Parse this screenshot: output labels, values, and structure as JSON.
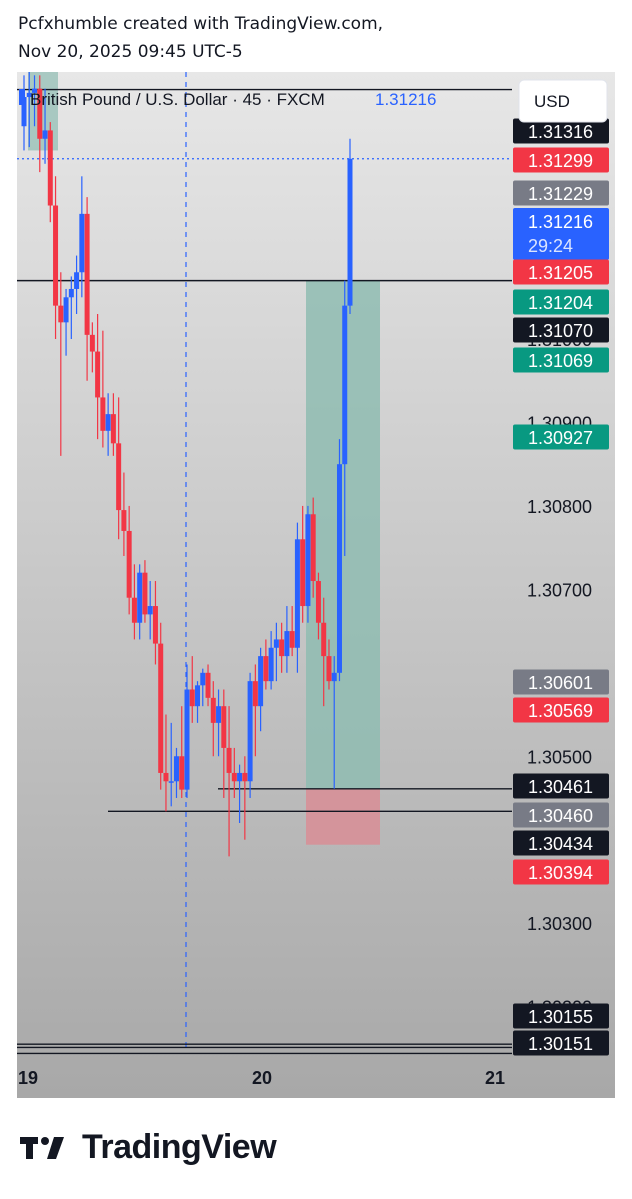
{
  "header": {
    "line1": "Pcfxhumble created with TradingView.com,",
    "line2": "Nov 20, 2025 09:45 UTC-5"
  },
  "legend": {
    "symbol": "British Pound / U.S. Dollar · 45 · FXCM",
    "last_price": "1.31216"
  },
  "currency_button": "USD",
  "footer": {
    "brand": "TradingView",
    "logo_icon": "tradingview-logo-icon"
  },
  "colors": {
    "up": "#2962ff",
    "down": "#f23645",
    "green_label": "#089981",
    "red_label": "#f23645",
    "blue_label": "#2962ff",
    "gray_label": "#787b86",
    "black_label": "#131722",
    "profit_zone": "#8fbcb2",
    "loss_zone": "#d88d95"
  },
  "chart_data": {
    "type": "candlestick",
    "symbol": "GBPUSD",
    "timeframe": "45",
    "x_ticks": [
      "19",
      "20",
      "21"
    ],
    "y_ticks": [
      "1.31000",
      "1.30900",
      "1.30800",
      "1.30700",
      "1.30500",
      "1.30300",
      "1.30200"
    ],
    "ylim": [
      1.3013,
      1.3132
    ],
    "candles": [
      {
        "o": 1.31255,
        "h": 1.31316,
        "l": 1.31226,
        "c": 1.3129
      },
      {
        "o": 1.3129,
        "h": 1.3132,
        "l": 1.3123,
        "c": 1.31295
      },
      {
        "o": 1.31295,
        "h": 1.31316,
        "l": 1.31255,
        "c": 1.313
      },
      {
        "o": 1.313,
        "h": 1.31316,
        "l": 1.312,
        "c": 1.3124
      },
      {
        "o": 1.3124,
        "h": 1.313,
        "l": 1.3121,
        "c": 1.3125
      },
      {
        "o": 1.3125,
        "h": 1.3126,
        "l": 1.3114,
        "c": 1.3116
      },
      {
        "o": 1.3116,
        "h": 1.31195,
        "l": 1.31,
        "c": 1.3104
      },
      {
        "o": 1.3104,
        "h": 1.3108,
        "l": 1.3086,
        "c": 1.3102
      },
      {
        "o": 1.3102,
        "h": 1.3106,
        "l": 1.3098,
        "c": 1.3105
      },
      {
        "o": 1.3105,
        "h": 1.31075,
        "l": 1.31,
        "c": 1.3106
      },
      {
        "o": 1.3106,
        "h": 1.311,
        "l": 1.3103,
        "c": 1.3108
      },
      {
        "o": 1.3108,
        "h": 1.31195,
        "l": 1.3105,
        "c": 1.3115
      },
      {
        "o": 1.3115,
        "h": 1.3117,
        "l": 1.3095,
        "c": 1.31005
      },
      {
        "o": 1.31005,
        "h": 1.3102,
        "l": 1.3096,
        "c": 1.30985
      },
      {
        "o": 1.30985,
        "h": 1.3103,
        "l": 1.3088,
        "c": 1.3093
      },
      {
        "o": 1.3093,
        "h": 1.3101,
        "l": 1.3087,
        "c": 1.3089
      },
      {
        "o": 1.3089,
        "h": 1.30935,
        "l": 1.3086,
        "c": 1.3091
      },
      {
        "o": 1.3091,
        "h": 1.30935,
        "l": 1.3086,
        "c": 1.30875
      },
      {
        "o": 1.30875,
        "h": 1.3093,
        "l": 1.3076,
        "c": 1.30795
      },
      {
        "o": 1.30795,
        "h": 1.3084,
        "l": 1.3074,
        "c": 1.3077
      },
      {
        "o": 1.3077,
        "h": 1.308,
        "l": 1.3067,
        "c": 1.3069
      },
      {
        "o": 1.3069,
        "h": 1.3073,
        "l": 1.3064,
        "c": 1.3066
      },
      {
        "o": 1.3066,
        "h": 1.3073,
        "l": 1.3064,
        "c": 1.3072
      },
      {
        "o": 1.3072,
        "h": 1.30735,
        "l": 1.3066,
        "c": 1.3067
      },
      {
        "o": 1.3067,
        "h": 1.3071,
        "l": 1.3064,
        "c": 1.3068
      },
      {
        "o": 1.3068,
        "h": 1.3071,
        "l": 1.3061,
        "c": 1.30635
      },
      {
        "o": 1.30635,
        "h": 1.3066,
        "l": 1.3046,
        "c": 1.3048
      },
      {
        "o": 1.3048,
        "h": 1.3055,
        "l": 1.30434,
        "c": 1.3047
      },
      {
        "o": 1.3047,
        "h": 1.3054,
        "l": 1.3044,
        "c": 1.3047
      },
      {
        "o": 1.3047,
        "h": 1.3051,
        "l": 1.3045,
        "c": 1.305
      },
      {
        "o": 1.305,
        "h": 1.3056,
        "l": 1.3045,
        "c": 1.3046
      },
      {
        "o": 1.3046,
        "h": 1.3061,
        "l": 1.3045,
        "c": 1.3058
      },
      {
        "o": 1.3058,
        "h": 1.3062,
        "l": 1.3054,
        "c": 1.3056
      },
      {
        "o": 1.3056,
        "h": 1.3059,
        "l": 1.3054,
        "c": 1.30585
      },
      {
        "o": 1.30585,
        "h": 1.30605,
        "l": 1.3056,
        "c": 1.306
      },
      {
        "o": 1.306,
        "h": 1.3061,
        "l": 1.3056,
        "c": 1.3057
      },
      {
        "o": 1.3057,
        "h": 1.3059,
        "l": 1.305,
        "c": 1.3054
      },
      {
        "o": 1.3054,
        "h": 1.3058,
        "l": 1.305,
        "c": 1.3056
      },
      {
        "o": 1.3056,
        "h": 1.3058,
        "l": 1.3045,
        "c": 1.3051
      },
      {
        "o": 1.3051,
        "h": 1.3056,
        "l": 1.3038,
        "c": 1.3048
      },
      {
        "o": 1.3048,
        "h": 1.3051,
        "l": 1.3045,
        "c": 1.3047
      },
      {
        "o": 1.3047,
        "h": 1.3049,
        "l": 1.3042,
        "c": 1.3048
      },
      {
        "o": 1.3048,
        "h": 1.305,
        "l": 1.304,
        "c": 1.3047
      },
      {
        "o": 1.3047,
        "h": 1.306,
        "l": 1.3045,
        "c": 1.3059
      },
      {
        "o": 1.3059,
        "h": 1.3061,
        "l": 1.305,
        "c": 1.3056
      },
      {
        "o": 1.3056,
        "h": 1.3063,
        "l": 1.3053,
        "c": 1.3062
      },
      {
        "o": 1.3062,
        "h": 1.3064,
        "l": 1.3058,
        "c": 1.3059
      },
      {
        "o": 1.3059,
        "h": 1.3065,
        "l": 1.3058,
        "c": 1.3063
      },
      {
        "o": 1.3063,
        "h": 1.3066,
        "l": 1.3059,
        "c": 1.3064
      },
      {
        "o": 1.3064,
        "h": 1.3066,
        "l": 1.306,
        "c": 1.3062
      },
      {
        "o": 1.3062,
        "h": 1.3068,
        "l": 1.306,
        "c": 1.3065
      },
      {
        "o": 1.3065,
        "h": 1.3068,
        "l": 1.3062,
        "c": 1.3063
      },
      {
        "o": 1.3063,
        "h": 1.3078,
        "l": 1.306,
        "c": 1.3076
      },
      {
        "o": 1.3076,
        "h": 1.308,
        "l": 1.3066,
        "c": 1.3068
      },
      {
        "o": 1.3068,
        "h": 1.308,
        "l": 1.3066,
        "c": 1.3079
      },
      {
        "o": 1.3079,
        "h": 1.3081,
        "l": 1.3069,
        "c": 1.3071
      },
      {
        "o": 1.3071,
        "h": 1.3072,
        "l": 1.3064,
        "c": 1.3066
      },
      {
        "o": 1.3066,
        "h": 1.3069,
        "l": 1.3056,
        "c": 1.3062
      },
      {
        "o": 1.3062,
        "h": 1.3064,
        "l": 1.3058,
        "c": 1.3059
      },
      {
        "o": 1.3059,
        "h": 1.3062,
        "l": 1.30461,
        "c": 1.306
      },
      {
        "o": 1.306,
        "h": 1.3088,
        "l": 1.3059,
        "c": 1.3085
      },
      {
        "o": 1.3085,
        "h": 1.3107,
        "l": 1.3074,
        "c": 1.3104
      },
      {
        "o": 1.3104,
        "h": 1.3124,
        "l": 1.3103,
        "c": 1.31216
      }
    ],
    "horizontal_lines": [
      1.31299,
      1.3107,
      1.30461,
      1.30434,
      1.30155,
      1.30151
    ],
    "vertical_line": "session break between 19 and 20",
    "position": {
      "type": "long",
      "entry": 1.3107,
      "target": 1.30461,
      "stop": 1.30394
    },
    "current_time_to_close": "29:24",
    "price_labels": [
      {
        "text": "1.31316",
        "color": "black"
      },
      {
        "text": "1.31299",
        "color": "red"
      },
      {
        "text": "1.31229",
        "color": "gray"
      },
      {
        "text": "1.31216",
        "color": "blue"
      },
      {
        "text": "1.31205",
        "color": "red"
      },
      {
        "text": "1.31204",
        "color": "green"
      },
      {
        "text": "1.31070",
        "color": "black"
      },
      {
        "text": "1.31069",
        "color": "green"
      },
      {
        "text": "1.30927",
        "color": "green"
      },
      {
        "text": "1.30601",
        "color": "gray"
      },
      {
        "text": "1.30569",
        "color": "red"
      },
      {
        "text": "1.30461",
        "color": "black"
      },
      {
        "text": "1.30460",
        "color": "gray"
      },
      {
        "text": "1.30434",
        "color": "black"
      },
      {
        "text": "1.30394",
        "color": "red"
      },
      {
        "text": "1.30155",
        "color": "black"
      },
      {
        "text": "1.30151",
        "color": "black"
      }
    ]
  }
}
